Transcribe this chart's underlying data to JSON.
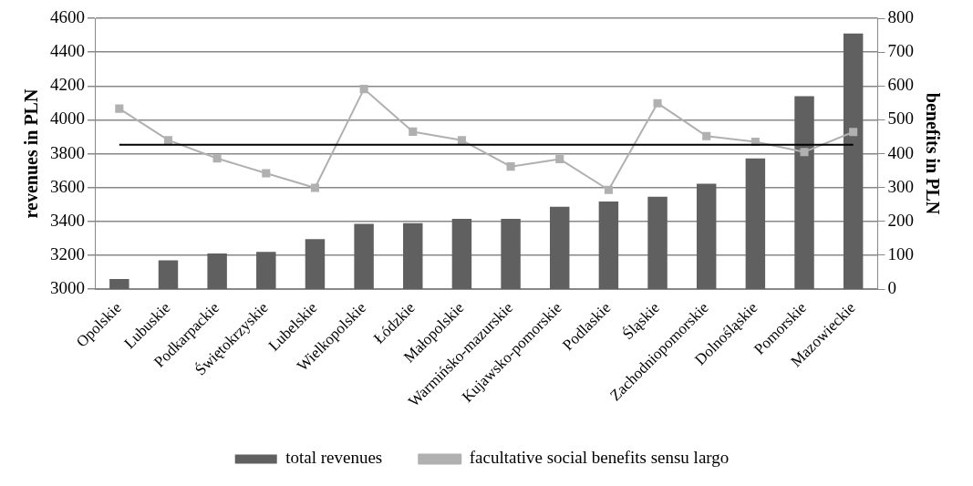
{
  "chart_data": {
    "type": "bar",
    "categories": [
      "Opolskie",
      "Lubuskie",
      "Podkarpackie",
      "Świętokrzyskie",
      "Lubelskie",
      "Wielkopolskie",
      "Łódzkie",
      "Małopolskie",
      "Warmińsko-mazurskie",
      "Kujawsko-pomorskie",
      "Podlaskie",
      "Śląskie",
      "Zachodniopomorskie",
      "Dolnośląskie",
      "Pomorskie",
      "Mazowieckie"
    ],
    "series": [
      {
        "name": "total revenues",
        "color": "#606060",
        "values": [
          3060,
          3170,
          3210,
          3220,
          3295,
          3385,
          3390,
          3415,
          3415,
          3487,
          3517,
          3546,
          3622,
          3772,
          4140,
          4510
        ]
      },
      {
        "name": "facultative social benefits sensu largo",
        "type": "line",
        "axis": "y2",
        "color": "#b0b0b0",
        "values": [
          533,
          440,
          386,
          342,
          299,
          591,
          465,
          440,
          362,
          384,
          293,
          549,
          452,
          435,
          405,
          464
        ]
      }
    ],
    "ylabel": "revenues in PLN",
    "y2label": "benefits in PLN",
    "ylim": [
      3000,
      4600
    ],
    "yticks": [
      3000,
      3200,
      3400,
      3600,
      3800,
      4000,
      4200,
      4400,
      4600
    ],
    "y2lim": [
      0,
      800
    ],
    "y2ticks": [
      0,
      100,
      200,
      300,
      400,
      500,
      600,
      700,
      800
    ],
    "ref_lines": [
      {
        "axis": "y2",
        "value": 426,
        "color": "#000000"
      }
    ],
    "grid": "y",
    "legend": "bottom",
    "marker": "square",
    "line_style": "solid"
  }
}
